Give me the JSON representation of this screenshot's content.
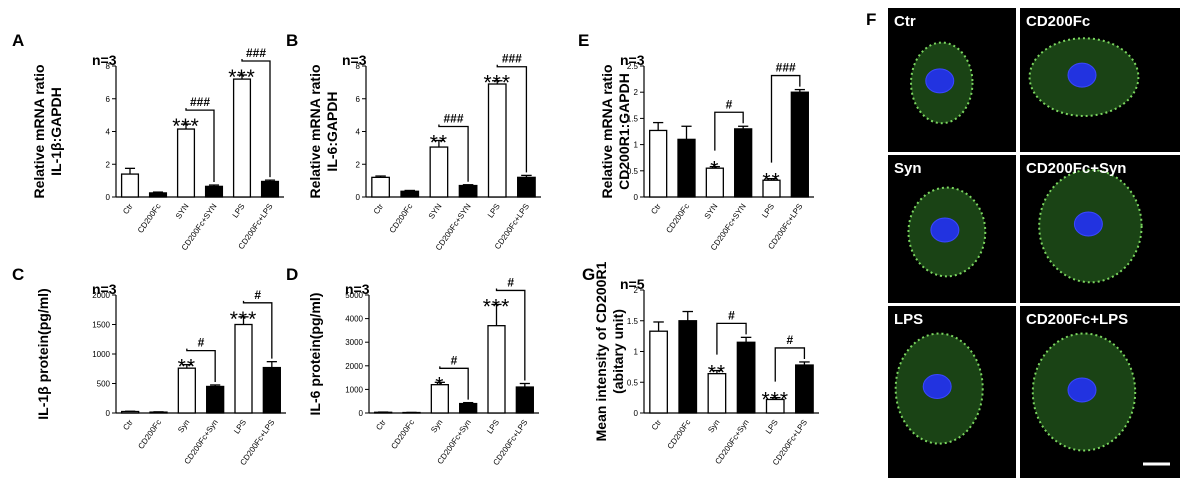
{
  "panel_f": {
    "letter": "F",
    "cells": [
      {
        "label": "Ctr"
      },
      {
        "label": "CD200Fc"
      },
      {
        "label": "Syn"
      },
      {
        "label": "CD200Fc+Syn"
      },
      {
        "label": "LPS"
      },
      {
        "label": "CD200Fc+LPS"
      }
    ]
  },
  "chart_data": [
    {
      "type": "bar",
      "panel": "A",
      "n_label": "n=3",
      "ylabel": [
        "Relative mRNA ratio",
        "IL-1β:GAPDH"
      ],
      "ylim": [
        0,
        8
      ],
      "yticks": [
        0,
        2,
        4,
        6,
        8
      ],
      "categories": [
        "Ctr",
        "CD200Fc",
        "SYN",
        "CD200Fc+SYN",
        "LPS",
        "CD200Fc+LPS"
      ],
      "values": [
        1.4,
        0.25,
        4.15,
        0.65,
        7.2,
        0.95
      ],
      "errors": [
        0.35,
        0.05,
        0.3,
        0.08,
        0.25,
        0.08
      ],
      "fills": [
        "white",
        "black",
        "white",
        "black",
        "white",
        "black"
      ],
      "stars": [
        "",
        "",
        "***",
        "",
        "***",
        ""
      ],
      "brackets": [
        {
          "from": 2,
          "to": 3,
          "label": "###"
        },
        {
          "from": 4,
          "to": 5,
          "label": "###"
        }
      ]
    },
    {
      "type": "bar",
      "panel": "B",
      "n_label": "n=3",
      "ylabel": [
        "Relative mRNA ratio",
        "IL-6:GAPDH"
      ],
      "ylim": [
        0,
        8
      ],
      "yticks": [
        0,
        2,
        4,
        6,
        8
      ],
      "categories": [
        "Ctr",
        "CD200Fc",
        "SYN",
        "CD200Fc+SYN",
        "LPS",
        "CD200Fc+LPS"
      ],
      "values": [
        1.2,
        0.35,
        3.05,
        0.7,
        6.9,
        1.2
      ],
      "errors": [
        0.08,
        0.05,
        0.4,
        0.05,
        0.2,
        0.12
      ],
      "fills": [
        "white",
        "black",
        "white",
        "black",
        "white",
        "black"
      ],
      "stars": [
        "",
        "",
        "**",
        "",
        "***",
        ""
      ],
      "brackets": [
        {
          "from": 2,
          "to": 3,
          "label": "###"
        },
        {
          "from": 4,
          "to": 5,
          "label": "###"
        }
      ]
    },
    {
      "type": "bar",
      "panel": "E",
      "n_label": "n=3",
      "ylabel": [
        "Relative mRNA ratio",
        "CD200R1:GAPDH"
      ],
      "ylim": [
        0,
        2.5
      ],
      "yticks": [
        0,
        0.5,
        1.0,
        1.5,
        2.0,
        2.5
      ],
      "categories": [
        "Ctr",
        "CD200Fc",
        "SYN",
        "CD200Fc+SYN",
        "LPS",
        "CD200Fc+LPS"
      ],
      "values": [
        1.27,
        1.1,
        0.55,
        1.3,
        0.32,
        2.0
      ],
      "errors": [
        0.15,
        0.25,
        0.03,
        0.05,
        0.03,
        0.05
      ],
      "fills": [
        "white",
        "black",
        "white",
        "black",
        "white",
        "black"
      ],
      "stars": [
        "",
        "",
        "*",
        "",
        "**",
        ""
      ],
      "brackets": [
        {
          "from": 2,
          "to": 3,
          "label": "#"
        },
        {
          "from": 4,
          "to": 5,
          "label": "###"
        }
      ]
    },
    {
      "type": "bar",
      "panel": "C",
      "n_label": "n=3",
      "ylabel": [
        "IL-1β protein(pg/ml)"
      ],
      "ylim": [
        0,
        2000
      ],
      "yticks": [
        0,
        500,
        1000,
        1500,
        2000
      ],
      "categories": [
        "Ctr",
        "CD200Fc",
        "Syn",
        "CD200Fc+Syn",
        "LPS",
        "CD200Fc+LPS"
      ],
      "values": [
        25,
        15,
        760,
        450,
        1500,
        770
      ],
      "errors": [
        5,
        5,
        60,
        25,
        130,
        100
      ],
      "fills": [
        "white",
        "black",
        "white",
        "black",
        "white",
        "black"
      ],
      "stars": [
        "",
        "",
        "**",
        "",
        "***",
        ""
      ],
      "brackets": [
        {
          "from": 2,
          "to": 3,
          "label": "#"
        },
        {
          "from": 4,
          "to": 5,
          "label": "#"
        }
      ]
    },
    {
      "type": "bar",
      "panel": "D",
      "n_label": "n=3",
      "ylabel": [
        "IL-6 protein(pg/ml)"
      ],
      "ylim": [
        0,
        5000
      ],
      "yticks": [
        0,
        1000,
        2000,
        3000,
        4000,
        5000
      ],
      "categories": [
        "Ctr",
        "CD200Fc",
        "Syn",
        "CD200Fc+Syn",
        "LPS",
        "CD200Fc+LPS"
      ],
      "values": [
        30,
        20,
        1200,
        400,
        3700,
        1100
      ],
      "errors": [
        10,
        5,
        100,
        40,
        900,
        150
      ],
      "fills": [
        "white",
        "black",
        "white",
        "black",
        "white",
        "black"
      ],
      "stars": [
        "",
        "",
        "*",
        "",
        "***",
        ""
      ],
      "brackets": [
        {
          "from": 2,
          "to": 3,
          "label": "#"
        },
        {
          "from": 4,
          "to": 5,
          "label": "#"
        }
      ]
    },
    {
      "type": "bar",
      "panel": "G",
      "n_label": "n=5",
      "ylabel": [
        "Mean intensity of CD200R1",
        "(abitary unit)"
      ],
      "ylim": [
        0,
        2.0
      ],
      "yticks": [
        0,
        0.5,
        1.0,
        1.5,
        2.0
      ],
      "categories": [
        "Ctr",
        "CD200Fc",
        "Syn",
        "CD200Fc+Syn",
        "LPS",
        "CD200Fc+LPS"
      ],
      "values": [
        1.33,
        1.5,
        0.64,
        1.15,
        0.22,
        0.78
      ],
      "errors": [
        0.15,
        0.15,
        0.05,
        0.08,
        0.03,
        0.05
      ],
      "fills": [
        "white",
        "black",
        "white",
        "black",
        "white",
        "black"
      ],
      "stars": [
        "",
        "",
        "**",
        "",
        "***",
        ""
      ],
      "brackets": [
        {
          "from": 2,
          "to": 3,
          "label": "#"
        },
        {
          "from": 4,
          "to": 5,
          "label": "#"
        }
      ]
    }
  ]
}
